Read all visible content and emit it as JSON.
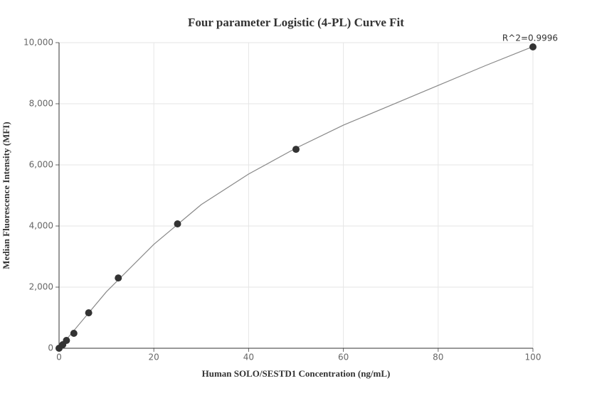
{
  "chart_data": {
    "type": "scatter",
    "title": "Four parameter Logistic (4-PL) Curve Fit",
    "x_label": "Human SOLO/SESTD1 Concentration (ng/mL)",
    "y_label": "Median Fluorescence Intensity (MFI)",
    "annotation": "R^2=0.9996",
    "x": [
      0,
      0.78,
      1.56,
      3.125,
      6.25,
      12.5,
      25,
      50,
      100
    ],
    "values": [
      0,
      116,
      256,
      488,
      1160,
      2300,
      4070,
      6510,
      9860
    ],
    "color": "#333333",
    "curve": {
      "x": [
        0,
        10,
        20,
        30,
        40,
        50,
        60,
        70,
        80,
        90,
        100
      ],
      "values": [
        0,
        1850,
        3400,
        4700,
        5700,
        6550,
        7300,
        7950,
        8600,
        9250,
        9870
      ],
      "color": "#888888"
    },
    "xlim": [
      0,
      100
    ],
    "xticks": [
      0,
      20,
      40,
      60,
      80,
      100
    ],
    "ylim": [
      0,
      10000
    ],
    "yticks": [
      0,
      {
        "value": 2000,
        "label": "2,000"
      },
      {
        "value": 4000,
        "label": "4,000"
      },
      {
        "value": 6000,
        "label": "6,000"
      },
      {
        "value": 8000,
        "label": "8,000"
      },
      {
        "value": 10000,
        "label": "10,000"
      }
    ],
    "grid": true
  }
}
